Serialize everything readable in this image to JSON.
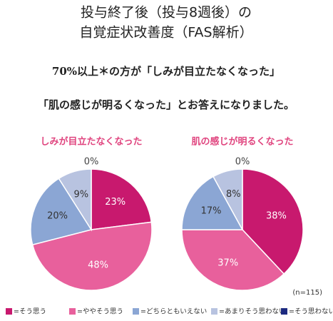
{
  "chart_data": {
    "type": "pie",
    "title": [
      "投与終了後（投与8週後）の",
      "自覚症状改善度（FAS解析）"
    ],
    "subtitle": [
      "70%以上＊の方が「しみが目立たなくなった」",
      "「肌の感じが明るくなった」とお答えになりました。"
    ],
    "categories": [
      "=そう思う",
      "=ややそう思う",
      "=どちらともいえない",
      "=あまりそう思わない",
      "=そう思わない"
    ],
    "colors": [
      "#c8196e",
      "#e8609c",
      "#8ba6d4",
      "#b8c3e0",
      "#1c2a80"
    ],
    "series": [
      {
        "name": "しみが目立たなくなった",
        "values": [
          23,
          48,
          20,
          9,
          0
        ],
        "value_labels": [
          "23%",
          "48%",
          "20%",
          "9%",
          "0%"
        ]
      },
      {
        "name": "肌の感じが明るくなった",
        "values": [
          38,
          37,
          17,
          8,
          0
        ],
        "value_labels": [
          "38%",
          "37%",
          "17%",
          "8%",
          "0%"
        ]
      }
    ],
    "note": "(n=115)"
  }
}
